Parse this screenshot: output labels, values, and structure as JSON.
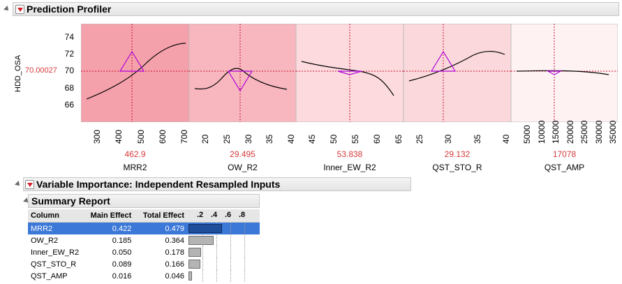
{
  "profiler": {
    "title": "Prediction Profiler",
    "y_label": "HDD_OSA",
    "y_current": "70.00027",
    "y_ticks": [
      "74",
      "72",
      "70",
      "68",
      "66"
    ],
    "factors": [
      {
        "name": "MRR2",
        "value": "462.9",
        "ticks": [
          "300",
          "400",
          "500",
          "600",
          "700"
        ],
        "bg": "#f5a1ab"
      },
      {
        "name": "OW_R2",
        "value": "29.495",
        "ticks": [
          "20",
          "25",
          "30",
          "35",
          "40"
        ],
        "bg": "#f8b7bf"
      },
      {
        "name": "Inner_EW_R2",
        "value": "53.838",
        "ticks": [
          "45",
          "50",
          "55",
          "60",
          "65"
        ],
        "bg": "#fcdadd"
      },
      {
        "name": "QST_STO_R",
        "value": "29.132",
        "ticks": [
          "25",
          "30",
          "35",
          "40"
        ],
        "bg": "#fbd8dc"
      },
      {
        "name": "QST_AMP",
        "value": "17078",
        "ticks": [
          "5000",
          "10000",
          "15000",
          "20000",
          "25000",
          "30000",
          "35000"
        ],
        "bg": "#fef2f3"
      }
    ]
  },
  "importance": {
    "title": "Variable Importance: Independent Resampled Inputs",
    "summary_title": "Summary Report",
    "headers": {
      "column": "Column",
      "main": "Main Effect",
      "total": "Total Effect"
    },
    "axis_ticks": [
      ".2",
      ".4",
      ".6",
      ".8"
    ],
    "rows": [
      {
        "column": "MRR2",
        "main": "0.422",
        "total": "0.479",
        "effect": 0.479,
        "selected": true
      },
      {
        "column": "OW_R2",
        "main": "0.185",
        "total": "0.364",
        "effect": 0.364,
        "selected": false
      },
      {
        "column": "Inner_EW_R2",
        "main": "0.050",
        "total": "0.178",
        "effect": 0.178,
        "selected": false
      },
      {
        "column": "QST_STO_R",
        "main": "0.089",
        "total": "0.166",
        "effect": 0.166,
        "selected": false
      },
      {
        "column": "QST_AMP",
        "main": "0.016",
        "total": "0.046",
        "effect": 0.046,
        "selected": false
      }
    ]
  },
  "colors": {
    "accent_red": "#d43a3a",
    "curve": "#000000",
    "crosshair": "#c8102e",
    "marker": "#b000d8",
    "selection": "#3c78d8"
  }
}
